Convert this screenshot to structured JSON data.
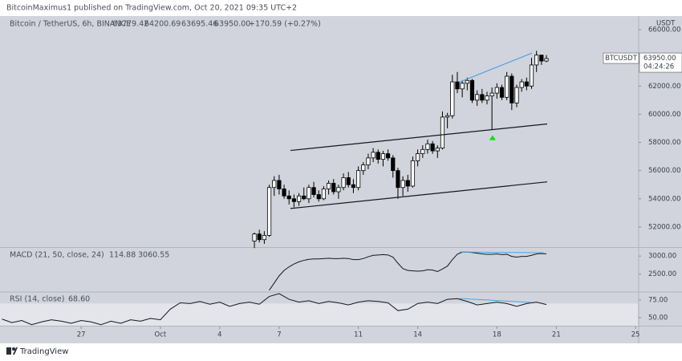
{
  "header": {
    "publisher": "BitcoinMaximus1 published on TradingView.com, Oct 20, 2021 09:35 UTC+2",
    "symbol": "Bitcoin / TetherUS, 6h, BINANCE",
    "ohlc": [
      "63779.42",
      "64200.69",
      "63695.46",
      "63950.00"
    ],
    "change": "+170.59 (+0.27%)"
  },
  "footer": "TradingView",
  "chart_data": [
    {
      "type": "candlestick",
      "currency": "USDT",
      "x": [
        5.75,
        6,
        6.25,
        6.5,
        6.75,
        7,
        7.25,
        7.5,
        7.75,
        8,
        8.25,
        8.5,
        8.75,
        9,
        9.25,
        9.5,
        9.75,
        10,
        10.25,
        10.5,
        10.75,
        11,
        11.25,
        11.5,
        11.75,
        12,
        12.25,
        12.5,
        12.75,
        13,
        13.25,
        13.5,
        13.75,
        14,
        14.25,
        14.5,
        14.75,
        15,
        15.25,
        15.5,
        15.75,
        16,
        16.25,
        16.5,
        16.75,
        17,
        17.25,
        17.5,
        17.75,
        18,
        18.25,
        18.5,
        18.75,
        19,
        19.25,
        19.5,
        19.75,
        20,
        20.25,
        20.5
      ],
      "open": [
        51000,
        51500,
        51100,
        51400,
        54800,
        55300,
        54700,
        54200,
        54000,
        53800,
        54200,
        54000,
        54800,
        54300,
        54000,
        54700,
        55100,
        54500,
        54800,
        55500,
        55000,
        54800,
        56000,
        56400,
        56900,
        57300,
        56800,
        57200,
        56900,
        56000,
        54800,
        55300,
        54900,
        56700,
        57200,
        57500,
        57900,
        57400,
        57600,
        59800,
        59900,
        62300,
        61800,
        62200,
        62400,
        61000,
        61400,
        61000,
        61300,
        61500,
        61900,
        61200,
        62700,
        60800,
        61900,
        62300,
        62000,
        63500,
        64200,
        63779.42
      ],
      "high": [
        51600,
        51800,
        51700,
        55000,
        55600,
        55700,
        55000,
        54600,
        54300,
        54400,
        54800,
        55000,
        55200,
        54600,
        54900,
        55300,
        55400,
        55000,
        55800,
        55900,
        55400,
        56300,
        56600,
        57200,
        57600,
        57500,
        57400,
        57500,
        57100,
        56200,
        55600,
        55700,
        57000,
        57500,
        57800,
        58200,
        58100,
        57800,
        60200,
        60100,
        62800,
        63000,
        62400,
        62600,
        62500,
        61700,
        61800,
        61600,
        61900,
        62200,
        62100,
        63000,
        62900,
        62100,
        62500,
        62600,
        64000,
        64500,
        64200,
        64200.69
      ],
      "low": [
        50500,
        50900,
        50800,
        51300,
        54200,
        54300,
        54000,
        53600,
        53400,
        53500,
        53900,
        53700,
        54100,
        53800,
        53900,
        54300,
        54300,
        54000,
        54600,
        54800,
        54400,
        54600,
        55700,
        56100,
        56600,
        56500,
        56300,
        56700,
        55500,
        54000,
        54200,
        54500,
        54800,
        56300,
        56900,
        57200,
        57200,
        56900,
        57500,
        59000,
        59700,
        61500,
        61200,
        61700,
        60800,
        60600,
        60800,
        60700,
        58900,
        61100,
        61000,
        61000,
        60300,
        60500,
        61600,
        61700,
        61800,
        63000,
        63500,
        63695.46
      ],
      "close": [
        51500,
        51100,
        51400,
        54800,
        55300,
        54700,
        54200,
        54000,
        53800,
        54200,
        54000,
        54800,
        54300,
        54000,
        54700,
        55100,
        54500,
        54800,
        55500,
        55000,
        54800,
        56000,
        56400,
        56900,
        57300,
        56800,
        57200,
        56900,
        56000,
        54800,
        55300,
        54900,
        56700,
        57200,
        57500,
        57900,
        57400,
        57600,
        59800,
        59900,
        62300,
        61800,
        62200,
        62400,
        61000,
        61400,
        61000,
        61300,
        61500,
        61900,
        61200,
        62700,
        60800,
        61900,
        62300,
        62000,
        63500,
        64200,
        63779.42,
        63950
      ],
      "up_color": "#ffffff",
      "down_color": "#000000",
      "xlim": [
        -7.1,
        25.12
      ],
      "ylim": [
        50571,
        66857
      ],
      "xticks": [
        {
          "value": -3,
          "label": "27"
        },
        {
          "value": 1,
          "label": "Oct"
        },
        4,
        7,
        11,
        14,
        18,
        21,
        25
      ],
      "yticks": [
        {
          "value": 52000,
          "label": "52000.00"
        },
        {
          "value": 54000,
          "label": "54000.00"
        },
        {
          "value": 56000,
          "label": "56000.00"
        },
        {
          "value": 58000,
          "label": "58000.00"
        },
        {
          "value": 60000,
          "label": "60000.00"
        },
        {
          "value": 62000,
          "label": "62000.00"
        },
        {
          "value": 66000,
          "label": "66000.00"
        }
      ],
      "price_tag": {
        "symbol": "BTCUSDT",
        "price": "63950.00",
        "countdown": "04:24:26"
      },
      "lines": [
        {
          "color": "#131722",
          "x": [
            7.57,
            20.54
          ],
          "y": [
            57430,
            59310
          ]
        },
        {
          "color": "#131722",
          "x": [
            7.57,
            20.54
          ],
          "y": [
            53310,
            55200
          ]
        },
        {
          "color": "#4fa3e0",
          "x": [
            16.12,
            19.77
          ],
          "y": [
            62290,
            64340
          ]
        }
      ],
      "markers": [
        {
          "shape": "triangle-up",
          "color": "#00e600",
          "x": 17.78,
          "y": 58340
        }
      ]
    },
    {
      "type": "line",
      "title": "MACD (21, 50, close, 24)",
      "signal": 114.88,
      "color": "#131722",
      "values": [
        null,
        null,
        null,
        2050,
        2250,
        2450,
        2600,
        2700,
        2780,
        2840,
        2880,
        2910,
        2920,
        2920,
        2930,
        2940,
        2930,
        2930,
        2940,
        2930,
        2900,
        2900,
        2930,
        2980,
        3020,
        3030,
        3040,
        3030,
        2970,
        2800,
        2650,
        2600,
        2590,
        2580,
        2590,
        2620,
        2610,
        2570,
        2640,
        2720,
        2900,
        3050,
        3110,
        3110,
        3100,
        3080,
        3060,
        3050,
        3050,
        3060,
        3040,
        3050,
        2990,
        2970,
        2990,
        2990,
        3020,
        3060,
        3070,
        3060.55
      ],
      "ylim": [
        2023,
        3227
      ],
      "yticks": [
        {
          "value": 2500,
          "label": "2500.00"
        },
        {
          "value": 3000,
          "label": "3000.00"
        }
      ],
      "lines": [
        {
          "color": "#4fa3e0",
          "x": [
            16.12,
            20.36
          ],
          "y": [
            3114,
            3091
          ]
        }
      ]
    },
    {
      "type": "line",
      "title": "RSI (14, close)",
      "value_label": "68.60",
      "color": "#131722",
      "x": [
        -7,
        -6.5,
        -6,
        -5.5,
        -5,
        -4.5,
        -4,
        -3.5,
        -3,
        -2.5,
        -2,
        -1.5,
        -1,
        -0.5,
        0,
        0.5,
        1,
        1.5,
        2,
        2.5,
        3,
        3.5,
        4,
        4.5,
        5,
        5.5,
        6,
        6.5,
        7,
        7.5,
        8,
        8.5,
        9,
        9.5,
        10,
        10.5,
        11,
        11.5,
        12,
        12.5,
        13,
        13.5,
        14,
        14.5,
        15,
        15.5,
        16,
        16.5,
        17,
        17.5,
        18,
        18.5,
        19,
        19.5,
        20,
        20.5
      ],
      "values": [
        48,
        43,
        46,
        40,
        44,
        47,
        45,
        42,
        46,
        44,
        40,
        45,
        42,
        47,
        45,
        49,
        47,
        62,
        71,
        70,
        73,
        69,
        72,
        66,
        70,
        72,
        69,
        80,
        84,
        76,
        72,
        74,
        70,
        73,
        71,
        68,
        72,
        74,
        73,
        71,
        60,
        62,
        70,
        72,
        70,
        76,
        77,
        73,
        68,
        70,
        72,
        70,
        66,
        70,
        72,
        68.6
      ],
      "band": [
        30,
        70
      ],
      "band_color": "#e3e5ea",
      "ylim": [
        38.6,
        85.2
      ],
      "yticks": [
        {
          "value": 50,
          "label": "50.00"
        },
        {
          "value": 75,
          "label": "75.00"
        }
      ],
      "lines": [
        {
          "color": "#4fa3e0",
          "x": [
            16.08,
            19.73
          ],
          "y": [
            77.3,
            71.6
          ]
        }
      ]
    }
  ]
}
